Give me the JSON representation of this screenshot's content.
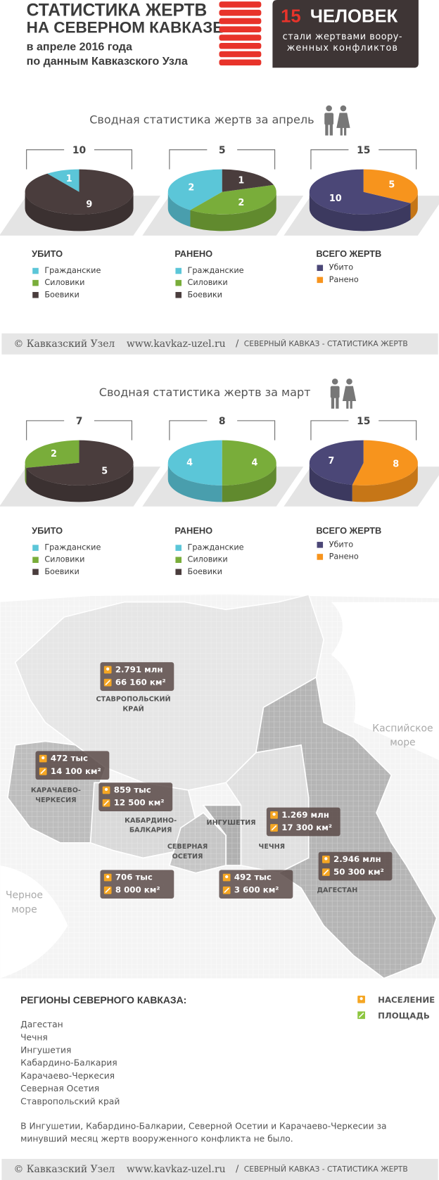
{
  "header": {
    "title_lines": [
      "СТАТИСТИКА ЖЕРТВ",
      "НА СЕВЕРНОМ КАВКАЗЕ"
    ],
    "subtitle_lines": [
      "в апреле 2016 года",
      "по данным Кавказского Узла"
    ],
    "badge": {
      "count": 15,
      "unit": "ЧЕЛОВЕК",
      "lines": [
        "стали жертвами воору-",
        "женных конфликтов"
      ]
    }
  },
  "sections": [
    "Сводная статистика жертв за апрель",
    "Сводная статистика жертв за март"
  ],
  "chart_data": [
    {
      "type": "pie",
      "title": "УБИТО",
      "total": 10,
      "categories": [
        "Гражданские",
        "Силовики",
        "Боевики"
      ],
      "values": [
        1,
        0,
        9
      ],
      "colors": [
        "#5bc6d8",
        "#79ad3a",
        "#4a3d3d"
      ]
    },
    {
      "type": "pie",
      "title": "РАНЕНО",
      "total": 5,
      "categories": [
        "Гражданские",
        "Силовики",
        "Боевики"
      ],
      "values": [
        2,
        2,
        1
      ],
      "colors": [
        "#5bc6d8",
        "#79ad3a",
        "#4a3d3d"
      ]
    },
    {
      "type": "pie",
      "title": "ВСЕГО ЖЕРТВ",
      "total": 15,
      "categories": [
        "Убито",
        "Ранено"
      ],
      "values": [
        10,
        5
      ],
      "colors": [
        "#4b4777",
        "#f7941d"
      ]
    },
    {
      "type": "pie",
      "title": "УБИТО",
      "total": 7,
      "categories": [
        "Гражданские",
        "Силовики",
        "Боевики"
      ],
      "values": [
        0,
        2,
        5
      ],
      "colors": [
        "#5bc6d8",
        "#79ad3a",
        "#4a3d3d"
      ]
    },
    {
      "type": "pie",
      "title": "РАНЕНО",
      "total": 8,
      "categories": [
        "Гражданские",
        "Силовики",
        "Боевики"
      ],
      "values": [
        4,
        4,
        0
      ],
      "colors": [
        "#5bc6d8",
        "#79ad3a",
        "#4a3d3d"
      ]
    },
    {
      "type": "pie",
      "title": "ВСЕГО ЖЕРТВ",
      "total": 15,
      "categories": [
        "Убито",
        "Ранено"
      ],
      "values": [
        7,
        8
      ],
      "colors": [
        "#4b4777",
        "#f7941d"
      ]
    }
  ],
  "footer": {
    "copyright": "© Кавказский Узел",
    "url": "www.kavkaz-uzel.ru",
    "separator": "/",
    "caption": "СЕВЕРНЫЙ КАВКАЗ - СТАТИСТИКА ЖЕРТВ"
  },
  "map": {
    "seas": [
      [
        "Каспийское",
        "море"
      ],
      [
        "Черное",
        "море"
      ]
    ],
    "regions": [
      {
        "name": [
          "СТАВРОПОЛЬСКИЙ",
          "КРАЙ"
        ],
        "population": "2.791 млн",
        "area": "66 160 км²"
      },
      {
        "name": [
          "КАРАЧАЕВО-",
          "ЧЕРКЕСИЯ"
        ],
        "population": "472 тыс",
        "area": "14 100 км²"
      },
      {
        "name": [
          "КАБАРДИНО-",
          "БАЛКАРИЯ"
        ],
        "population": "859 тыс",
        "area": "12 500 км²"
      },
      {
        "name": [
          "ИНГУШЕТИЯ"
        ],
        "population": "492 тыс",
        "area": "3 600 км²"
      },
      {
        "name": [
          "СЕВЕРНАЯ",
          "ОСЕТИЯ"
        ],
        "population": "706 тыс",
        "area": "8 000 км²"
      },
      {
        "name": [
          "ЧЕЧНЯ"
        ],
        "population": "1.269 млн",
        "area": "17 300 км²"
      },
      {
        "name": [
          "ДАГЕСТАН"
        ],
        "population": "2.946 млн",
        "area": "50 300 км²"
      }
    ],
    "legend": {
      "population": "НАСЕЛЕНИЕ",
      "area": "ПЛОЩАДЬ"
    }
  },
  "regions_list": {
    "title": "РЕГИОНЫ СЕВЕРНОГО КАВКАЗА:",
    "items": [
      "Дагестан",
      "Чечня",
      "Ингушетия",
      "Кабардино-Балкария",
      "Карачаево-Черкесия",
      "Северная Осетия",
      "Ставропольский край"
    ],
    "note": [
      "В Ингушетии, Кабардино-Балкарии, Северной Осетии и Карачаево-Черкесии за",
      "минувший месяц жертв вооруженного конфликта не было."
    ]
  }
}
